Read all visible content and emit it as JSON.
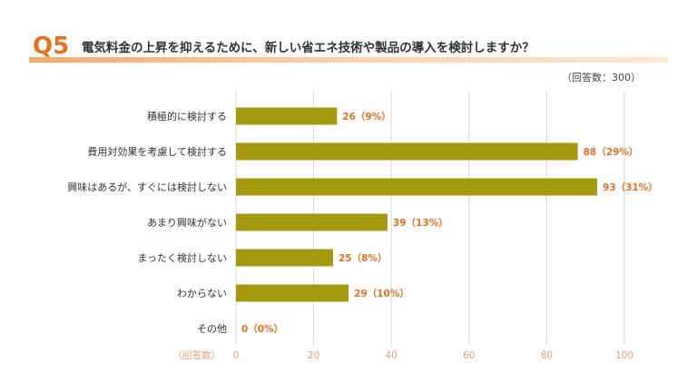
{
  "header": {
    "question_number": "Q5",
    "question_text": "電気料金の上昇を抑えるために、新しい省エネ技術や製品の導入を検討しますか？",
    "respondents": "（回答数：300）"
  },
  "colors": {
    "bar": "#a39a10",
    "accent": "#e8711f",
    "grid": "#d9d9d9"
  },
  "chart_data": {
    "type": "bar",
    "orientation": "horizontal",
    "title": "電気料金の上昇を抑えるために、新しい省エネ技術や製品の導入を検討しますか？",
    "xlabel": "（回答数）",
    "ylabel": "",
    "xlim": [
      0,
      100
    ],
    "ticks": [
      0,
      20,
      40,
      60,
      80,
      100
    ],
    "categories": [
      "積極的に検討する",
      "費用対効果を考慮して検討する",
      "興味はあるが、すぐには検討しない",
      "あまり興味がない",
      "まったく検討しない",
      "わからない",
      "その他"
    ],
    "values": [
      26,
      88,
      93,
      39,
      25,
      29,
      0
    ],
    "value_labels": [
      "26（9%）",
      "88（29%）",
      "93（31%）",
      "39（13%）",
      "25（8%）",
      "29（10%）",
      "0（0%）"
    ]
  }
}
